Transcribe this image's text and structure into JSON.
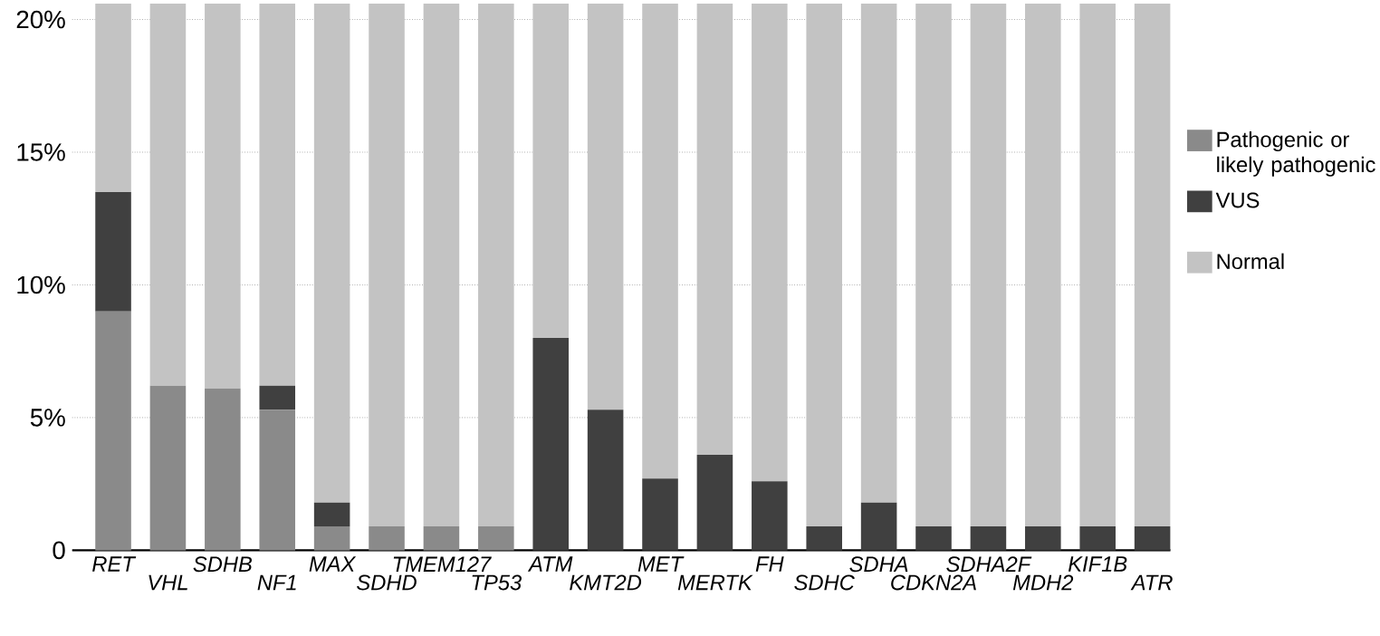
{
  "chart_data": {
    "type": "bar",
    "stacked": true,
    "categories": [
      "RET",
      "VHL",
      "SDHB",
      "NF1",
      "MAX",
      "SDHD",
      "TMEM127",
      "TP53",
      "ATM",
      "KMT2D",
      "MET",
      "MERTK",
      "FH",
      "SDHC",
      "SDHA",
      "CDKN2A",
      "SDHA2F",
      "MDH2",
      "KIF1B",
      "ATR"
    ],
    "series": [
      {
        "name": "Pathogenic or likely pathogenic",
        "color": "#8a8a8a",
        "values": [
          9.0,
          6.2,
          6.1,
          5.3,
          0.9,
          0.9,
          0.9,
          0.9,
          0,
          0,
          0,
          0,
          0,
          0,
          0,
          0,
          0,
          0,
          0,
          0
        ]
      },
      {
        "name": "VUS",
        "color": "#404040",
        "values": [
          4.5,
          0,
          0,
          0.9,
          0.9,
          0,
          0,
          0,
          8.0,
          5.3,
          2.7,
          3.6,
          2.6,
          0.9,
          1.8,
          0.9,
          0.9,
          0.9,
          0.9,
          0.9
        ]
      },
      {
        "name": "Normal",
        "color": "#c3c3c3",
        "values": [
          7.1,
          14.4,
          14.5,
          14.4,
          18.8,
          19.7,
          19.7,
          19.7,
          12.6,
          15.3,
          17.9,
          17.0,
          18.0,
          19.7,
          18.8,
          19.7,
          19.7,
          19.7,
          19.7,
          19.7
        ]
      }
    ],
    "ylim": [
      0,
      20.6
    ],
    "yticks": [
      0,
      {
        "value": 5,
        "label": "5%"
      },
      {
        "value": 10,
        "label": "10%"
      },
      {
        "value": 15,
        "label": "15%"
      },
      {
        "value": 20,
        "label": "20%"
      }
    ],
    "grid": "y",
    "legend": "right"
  }
}
